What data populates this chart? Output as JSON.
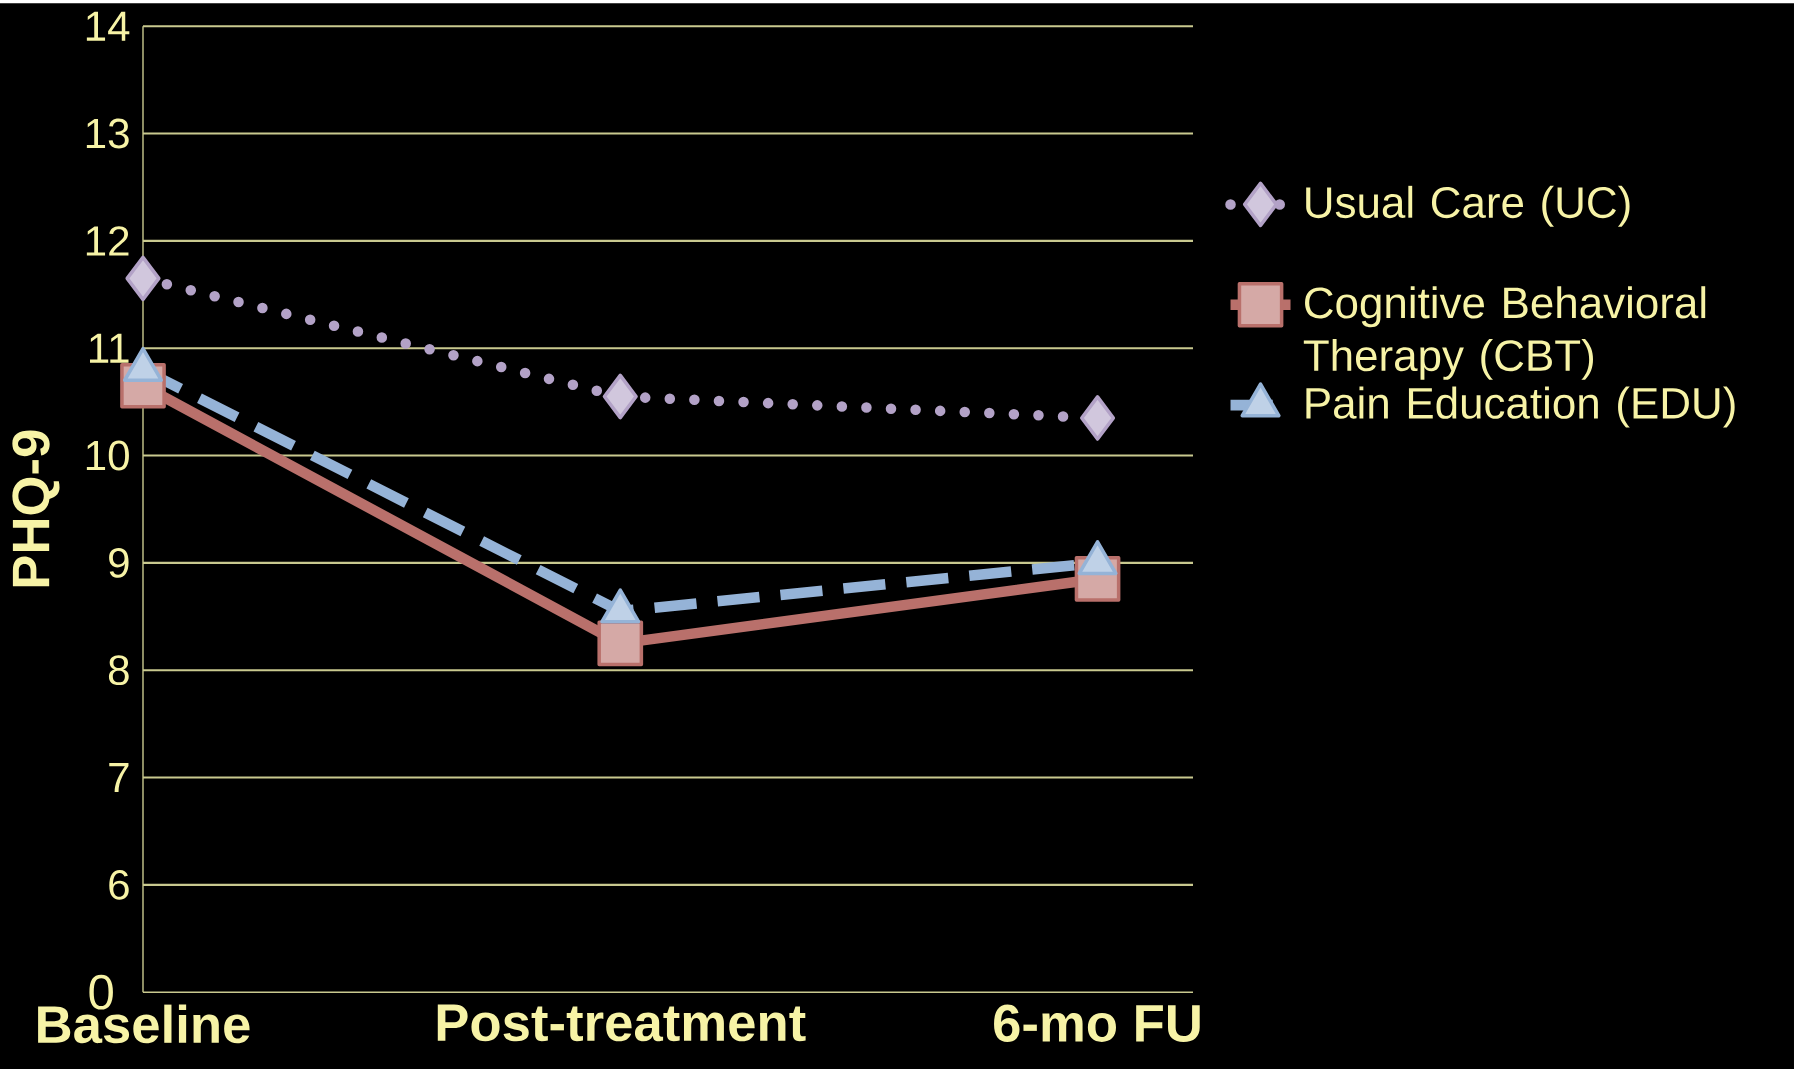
{
  "chart_data": {
    "type": "line",
    "ylabel": "PHQ-9",
    "categories": [
      "Baseline",
      "Post-treatment",
      "6-mo FU"
    ],
    "ylim": [
      5,
      14
    ],
    "yticks": [
      6,
      7,
      8,
      9,
      10,
      11,
      12,
      13,
      14
    ],
    "grid": "y",
    "legend": "right",
    "annotations": [
      "0"
    ],
    "series": [
      {
        "name": "Usual Care (UC)",
        "color": "#b3a2c7",
        "marker": "diamond",
        "line_style": "dotted",
        "values": [
          11.65,
          10.55,
          10.35
        ]
      },
      {
        "name": "Cognitive Behavioral Therapy (CBT)",
        "color": "#b9706b",
        "marker": "square",
        "line_style": "solid",
        "values": [
          10.65,
          8.25,
          8.85
        ]
      },
      {
        "name": "Pain Education (EDU)",
        "color": "#95b3d7",
        "marker": "triangle",
        "line_style": "dashed",
        "values": [
          10.8,
          8.55,
          9.0
        ]
      }
    ]
  }
}
